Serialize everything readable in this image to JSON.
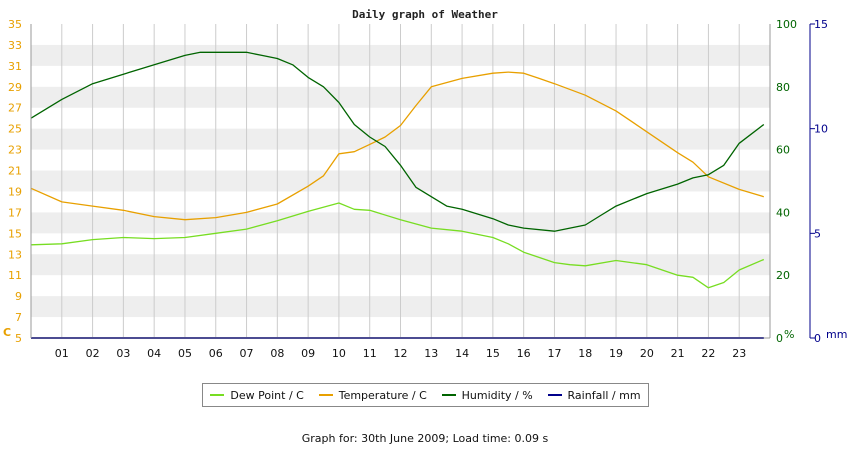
{
  "footer": "Graph for: 30th June 2009; Load time: 0.09 s",
  "chart_data": {
    "type": "line",
    "title": "Daily graph of Weather",
    "x_range": [
      0,
      24
    ],
    "x_ticks": [
      "01",
      "02",
      "03",
      "04",
      "05",
      "06",
      "07",
      "08",
      "09",
      "10",
      "11",
      "12",
      "13",
      "14",
      "15",
      "16",
      "17",
      "18",
      "19",
      "20",
      "21",
      "22",
      "23"
    ],
    "grid": true,
    "legend_position": "bottom",
    "axes": {
      "temp": {
        "unit": "C",
        "range": [
          5,
          35
        ],
        "ticks": [
          5,
          7,
          9,
          11,
          13,
          15,
          17,
          19,
          21,
          23,
          25,
          27,
          29,
          31,
          33,
          35
        ],
        "color": "#e8a000"
      },
      "humidity": {
        "unit": "%",
        "range": [
          0,
          100
        ],
        "ticks": [
          0,
          20,
          40,
          60,
          80,
          100
        ],
        "color": "#006400"
      },
      "rain": {
        "unit": "mm",
        "range": [
          0,
          15
        ],
        "ticks": [
          0,
          5,
          10,
          15
        ],
        "color": "#00008b"
      }
    },
    "series": [
      {
        "name": "Dew Point / C",
        "color": "#77dd22",
        "axis": "temp",
        "x": [
          0,
          1,
          2,
          3,
          4,
          5,
          6,
          7,
          8,
          9,
          10,
          10.5,
          11,
          12,
          13,
          14,
          15,
          15.5,
          16,
          17,
          17.5,
          18,
          19,
          20,
          21,
          21.5,
          22,
          22.5,
          23,
          23.8
        ],
        "y": [
          13.9,
          14.0,
          14.4,
          14.6,
          14.5,
          14.6,
          15.0,
          15.4,
          16.2,
          17.1,
          17.9,
          17.3,
          17.2,
          16.3,
          15.5,
          15.2,
          14.6,
          14.0,
          13.2,
          12.2,
          12.0,
          11.9,
          12.4,
          12.0,
          11.0,
          10.8,
          9.8,
          10.3,
          11.5,
          12.5
        ]
      },
      {
        "name": "Temperature / C",
        "color": "#e8a000",
        "axis": "temp",
        "x": [
          0,
          1,
          2,
          3,
          4,
          5,
          6,
          7,
          8,
          9,
          9.5,
          10,
          10.5,
          11,
          11.5,
          12,
          12.5,
          13,
          14,
          15,
          15.5,
          16,
          16.5,
          17,
          18,
          19,
          20,
          21,
          21.5,
          22,
          23,
          23.8
        ],
        "y": [
          19.3,
          18.0,
          17.6,
          17.2,
          16.6,
          16.3,
          16.5,
          17.0,
          17.8,
          19.5,
          20.5,
          22.6,
          22.8,
          23.5,
          24.2,
          25.3,
          27.2,
          29.0,
          29.8,
          30.3,
          30.4,
          30.3,
          29.8,
          29.3,
          28.2,
          26.7,
          24.7,
          22.7,
          21.8,
          20.4,
          19.2,
          18.5
        ]
      },
      {
        "name": "Humidity / %",
        "color": "#006400",
        "axis": "humidity",
        "x": [
          0,
          1,
          2,
          3,
          4,
          5,
          5.5,
          6,
          7,
          7.5,
          8,
          8.5,
          9,
          9.5,
          10,
          10.5,
          11,
          11.5,
          12,
          12.5,
          13,
          13.5,
          14,
          15,
          15.5,
          16,
          17,
          17.5,
          18,
          18.5,
          19,
          20,
          21,
          21.5,
          22,
          22.5,
          23,
          23.8
        ],
        "y": [
          70,
          76,
          81,
          84,
          87,
          90,
          91,
          91,
          91,
          90,
          89,
          87,
          83,
          80,
          75,
          68,
          64,
          61,
          55,
          48,
          45,
          42,
          41,
          38,
          36,
          35,
          34,
          35,
          36,
          39,
          42,
          46,
          49,
          51,
          52,
          55,
          62,
          68
        ]
      },
      {
        "name": "Rainfall / mm",
        "color": "#00008b",
        "axis": "rain",
        "x": [
          0,
          23.8
        ],
        "y": [
          0,
          0
        ]
      }
    ]
  }
}
